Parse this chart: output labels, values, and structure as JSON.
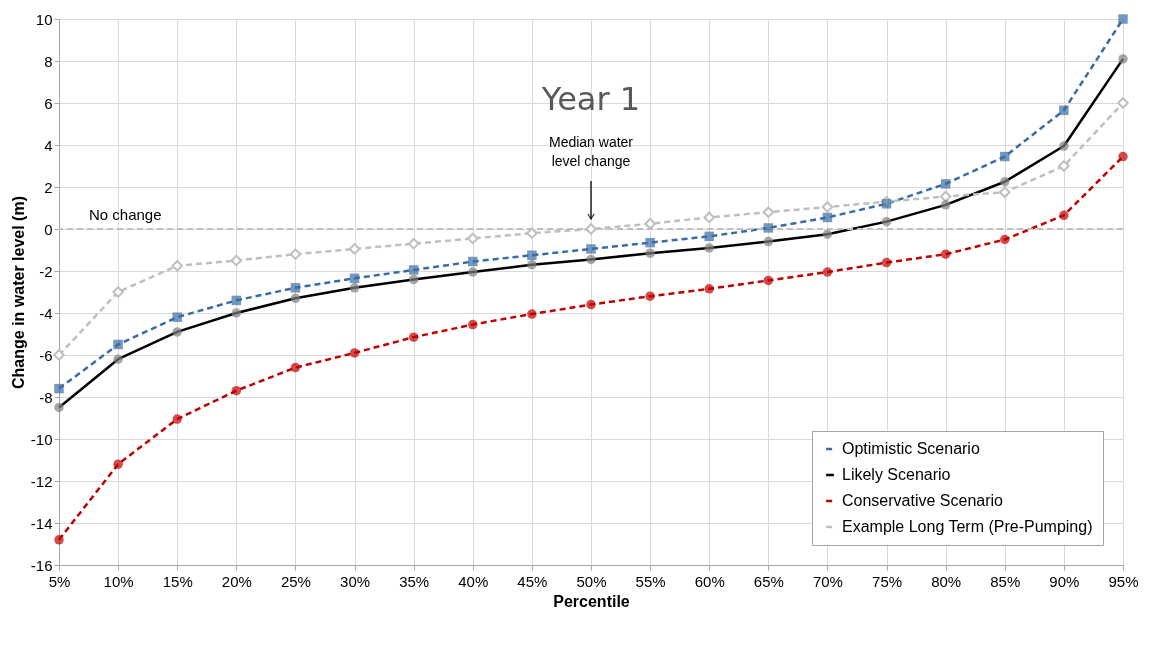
{
  "chart_data": {
    "type": "line",
    "title": "Year 1",
    "xlabel": "Percentile",
    "ylabel": "Change in water level (m)",
    "categories": [
      "5%",
      "10%",
      "15%",
      "20%",
      "25%",
      "30%",
      "35%",
      "40%",
      "45%",
      "50%",
      "55%",
      "60%",
      "65%",
      "70%",
      "75%",
      "80%",
      "85%",
      "90%",
      "95%"
    ],
    "series": [
      {
        "name": "Optimistic Scenario",
        "color": "#3a6ca4",
        "marker": "square",
        "line_style": "dashed",
        "values": [
          -7.6,
          -5.5,
          -4.2,
          -3.4,
          -2.8,
          -2.35,
          -1.95,
          -1.55,
          -1.25,
          -0.95,
          -0.65,
          -0.35,
          0.05,
          0.55,
          1.2,
          2.15,
          3.45,
          5.65,
          10
        ]
      },
      {
        "name": "Likely Scenario",
        "color": "#000000",
        "marker": "circle",
        "line_style": "solid",
        "values": [
          -8.5,
          -6.2,
          -4.9,
          -4.0,
          -3.3,
          -2.8,
          -2.4,
          -2.05,
          -1.7,
          -1.45,
          -1.15,
          -0.9,
          -0.6,
          -0.25,
          0.35,
          1.15,
          2.25,
          3.95,
          8.1
        ]
      },
      {
        "name": "Conservative Scenario",
        "color": "#c00000",
        "marker": "circle",
        "line_style": "dashed",
        "values": [
          -14.8,
          -11.2,
          -9.05,
          -7.7,
          -6.6,
          -5.9,
          -5.15,
          -4.55,
          -4.05,
          -3.6,
          -3.2,
          -2.85,
          -2.45,
          -2.05,
          -1.6,
          -1.2,
          -0.5,
          0.65,
          3.45
        ]
      },
      {
        "name": "Example Long Term (Pre-Pumping)",
        "color": "#bfbfbf",
        "marker": "diamond",
        "line_style": "dashed",
        "values": [
          -6.0,
          -3.0,
          -1.75,
          -1.5,
          -1.2,
          -0.95,
          -0.7,
          -0.45,
          -0.2,
          0.0,
          0.25,
          0.55,
          0.8,
          1.05,
          1.3,
          1.55,
          1.75,
          3.0,
          6.0
        ]
      }
    ],
    "ylim": [
      -16,
      10
    ],
    "yticks": [
      -16,
      -14,
      -12,
      -10,
      -8,
      -6,
      -4,
      -2,
      0,
      2,
      4,
      6,
      8,
      10
    ],
    "ref_lines": [
      {
        "axis": "y",
        "value": 0,
        "label": "No change",
        "color": "#bfbfbf",
        "line_style": "dashed"
      }
    ],
    "annotations": [
      "Median water level change"
    ],
    "grid": true,
    "legend": "bottom right"
  }
}
